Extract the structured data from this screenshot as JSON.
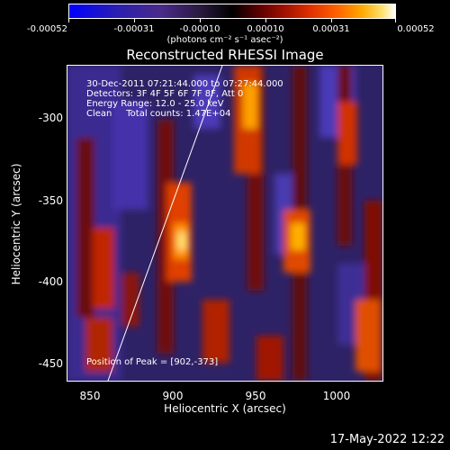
{
  "colorbar": {
    "tick_labels": [
      "-0.00052",
      "-0.00031",
      "-0.00010",
      "0.00010",
      "0.00031",
      "0.00052"
    ],
    "units": "(photons cm⁻² s⁻¹ asec⁻²)"
  },
  "title": "Reconstructed RHESSI Image",
  "info": {
    "line1": "30-Dec-2011 07:21:44.000 to 07:27:44.000",
    "line2": "Detectors: 3F 4F 5F 6F 7F 8F, Att 0",
    "line3": "Energy Range: 12.0 - 25.0 keV",
    "line4": "Clean     Total counts: 1.47E+04"
  },
  "peak": "Position of Peak = [902,-373]",
  "axes": {
    "xlabel": "Heliocentric X (arcsec)",
    "ylabel": "Heliocentric Y (arcsec)",
    "xticks": [
      "850",
      "900",
      "950",
      "1000"
    ],
    "yticks": [
      "-300",
      "-350",
      "-400",
      "-450"
    ]
  },
  "timestamp": "17-May-2022 12:22"
}
